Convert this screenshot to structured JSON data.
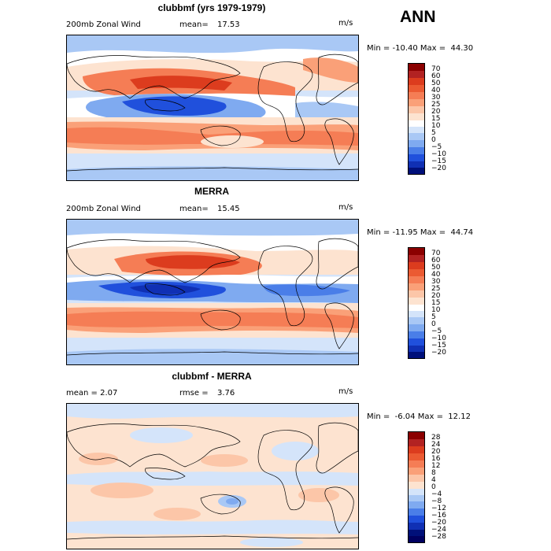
{
  "season": "ANN",
  "panels": [
    {
      "title": "clubbmf (yrs 1979-1979)",
      "left_label": "200mb Zonal Wind",
      "stat_label": "mean=",
      "stat_value": "17.53",
      "units": "m/s",
      "min_max": "Min = -10.40 Max =  44.30",
      "colorbar_levels": [
        "70",
        "60",
        "50",
        "40",
        "30",
        "25",
        "20",
        "15",
        "10",
        "5",
        "0",
        "−5",
        "−10",
        "−15",
        "−20"
      ]
    },
    {
      "title": "MERRA",
      "left_label": "200mb Zonal Wind",
      "stat_label": "mean=",
      "stat_value": "15.45",
      "units": "m/s",
      "min_max": "Min = -11.95 Max =  44.74",
      "colorbar_levels": [
        "70",
        "60",
        "50",
        "40",
        "30",
        "25",
        "20",
        "15",
        "10",
        "5",
        "0",
        "−5",
        "−10",
        "−15",
        "−20"
      ]
    },
    {
      "title": "clubbmf - MERRA",
      "left_label": "mean =   2.07",
      "stat_label": "rmse =",
      "stat_value": "3.76",
      "units": "m/s",
      "min_max": "Min =  -6.04 Max =  12.12",
      "colorbar_levels": [
        "28",
        "24",
        "20",
        "16",
        "12",
        "8",
        "4",
        "0",
        "−4",
        "−8",
        "−12",
        "−16",
        "−20",
        "−24",
        "−28"
      ]
    }
  ],
  "colors": {
    "wind_scale": [
      "#8b0000",
      "#b22222",
      "#dc3c1e",
      "#eb5a32",
      "#f57d55",
      "#faa078",
      "#fcc6a8",
      "#fde3d0",
      "#ffffff",
      "#d4e4fa",
      "#a9c8f5",
      "#7faaf0",
      "#4a7ee8",
      "#2050dc",
      "#1030b4",
      "#00107a"
    ],
    "diff_scale": [
      "#8b0000",
      "#b22222",
      "#dc3c1e",
      "#eb5a32",
      "#f57d55",
      "#faa078",
      "#fcc6a8",
      "#fde3d0",
      "#d4e4fa",
      "#a9c8f5",
      "#7faaf0",
      "#4a7ee8",
      "#2050dc",
      "#1030b4",
      "#00107a",
      "#000060"
    ]
  }
}
